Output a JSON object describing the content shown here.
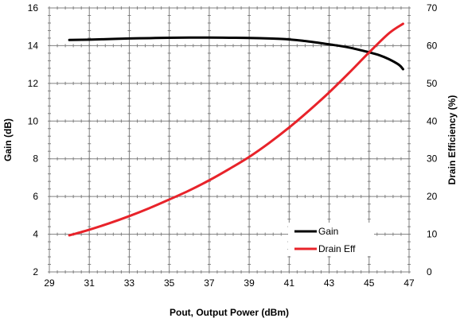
{
  "chart_data": {
    "type": "line",
    "xlabel": "Pout, Output Power (dBm)",
    "ylabel_left": "Gain (dB)",
    "ylabel_right": "Drain Efficiency (%)",
    "xlim": [
      29,
      47
    ],
    "ylim_left": [
      2,
      16
    ],
    "ylim_right": [
      0,
      70
    ],
    "x_ticks": [
      29,
      31,
      33,
      35,
      37,
      39,
      41,
      43,
      45,
      47
    ],
    "y_left_ticks": [
      2,
      4,
      6,
      8,
      10,
      12,
      14,
      16
    ],
    "y_right_ticks": [
      0,
      10,
      20,
      30,
      40,
      50,
      60,
      70
    ],
    "grid": true,
    "legend_position": "lower-right",
    "series": [
      {
        "name": "Gain",
        "axis": "left",
        "color": "#000000",
        "x": [
          30,
          31,
          32,
          33,
          34,
          35,
          36,
          37,
          38,
          39,
          40,
          41,
          42,
          43,
          44,
          45,
          45.5,
          46,
          46.5,
          46.7
        ],
        "y": [
          14.3,
          14.32,
          14.35,
          14.38,
          14.4,
          14.42,
          14.43,
          14.43,
          14.42,
          14.41,
          14.38,
          14.33,
          14.22,
          14.07,
          13.9,
          13.65,
          13.5,
          13.28,
          12.98,
          12.75
        ]
      },
      {
        "name": "Drain Eff",
        "axis": "right",
        "color": "#e8232a",
        "x": [
          30,
          31,
          32,
          33,
          34,
          35,
          36,
          37,
          38,
          39,
          40,
          41,
          42,
          43,
          44,
          45,
          46,
          46.7
        ],
        "y": [
          9.7,
          11.2,
          12.9,
          14.8,
          16.9,
          19.2,
          21.6,
          24.3,
          27.3,
          30.5,
          34.2,
          38.3,
          42.8,
          47.6,
          52.8,
          58.2,
          63.3,
          65.8
        ]
      }
    ]
  }
}
